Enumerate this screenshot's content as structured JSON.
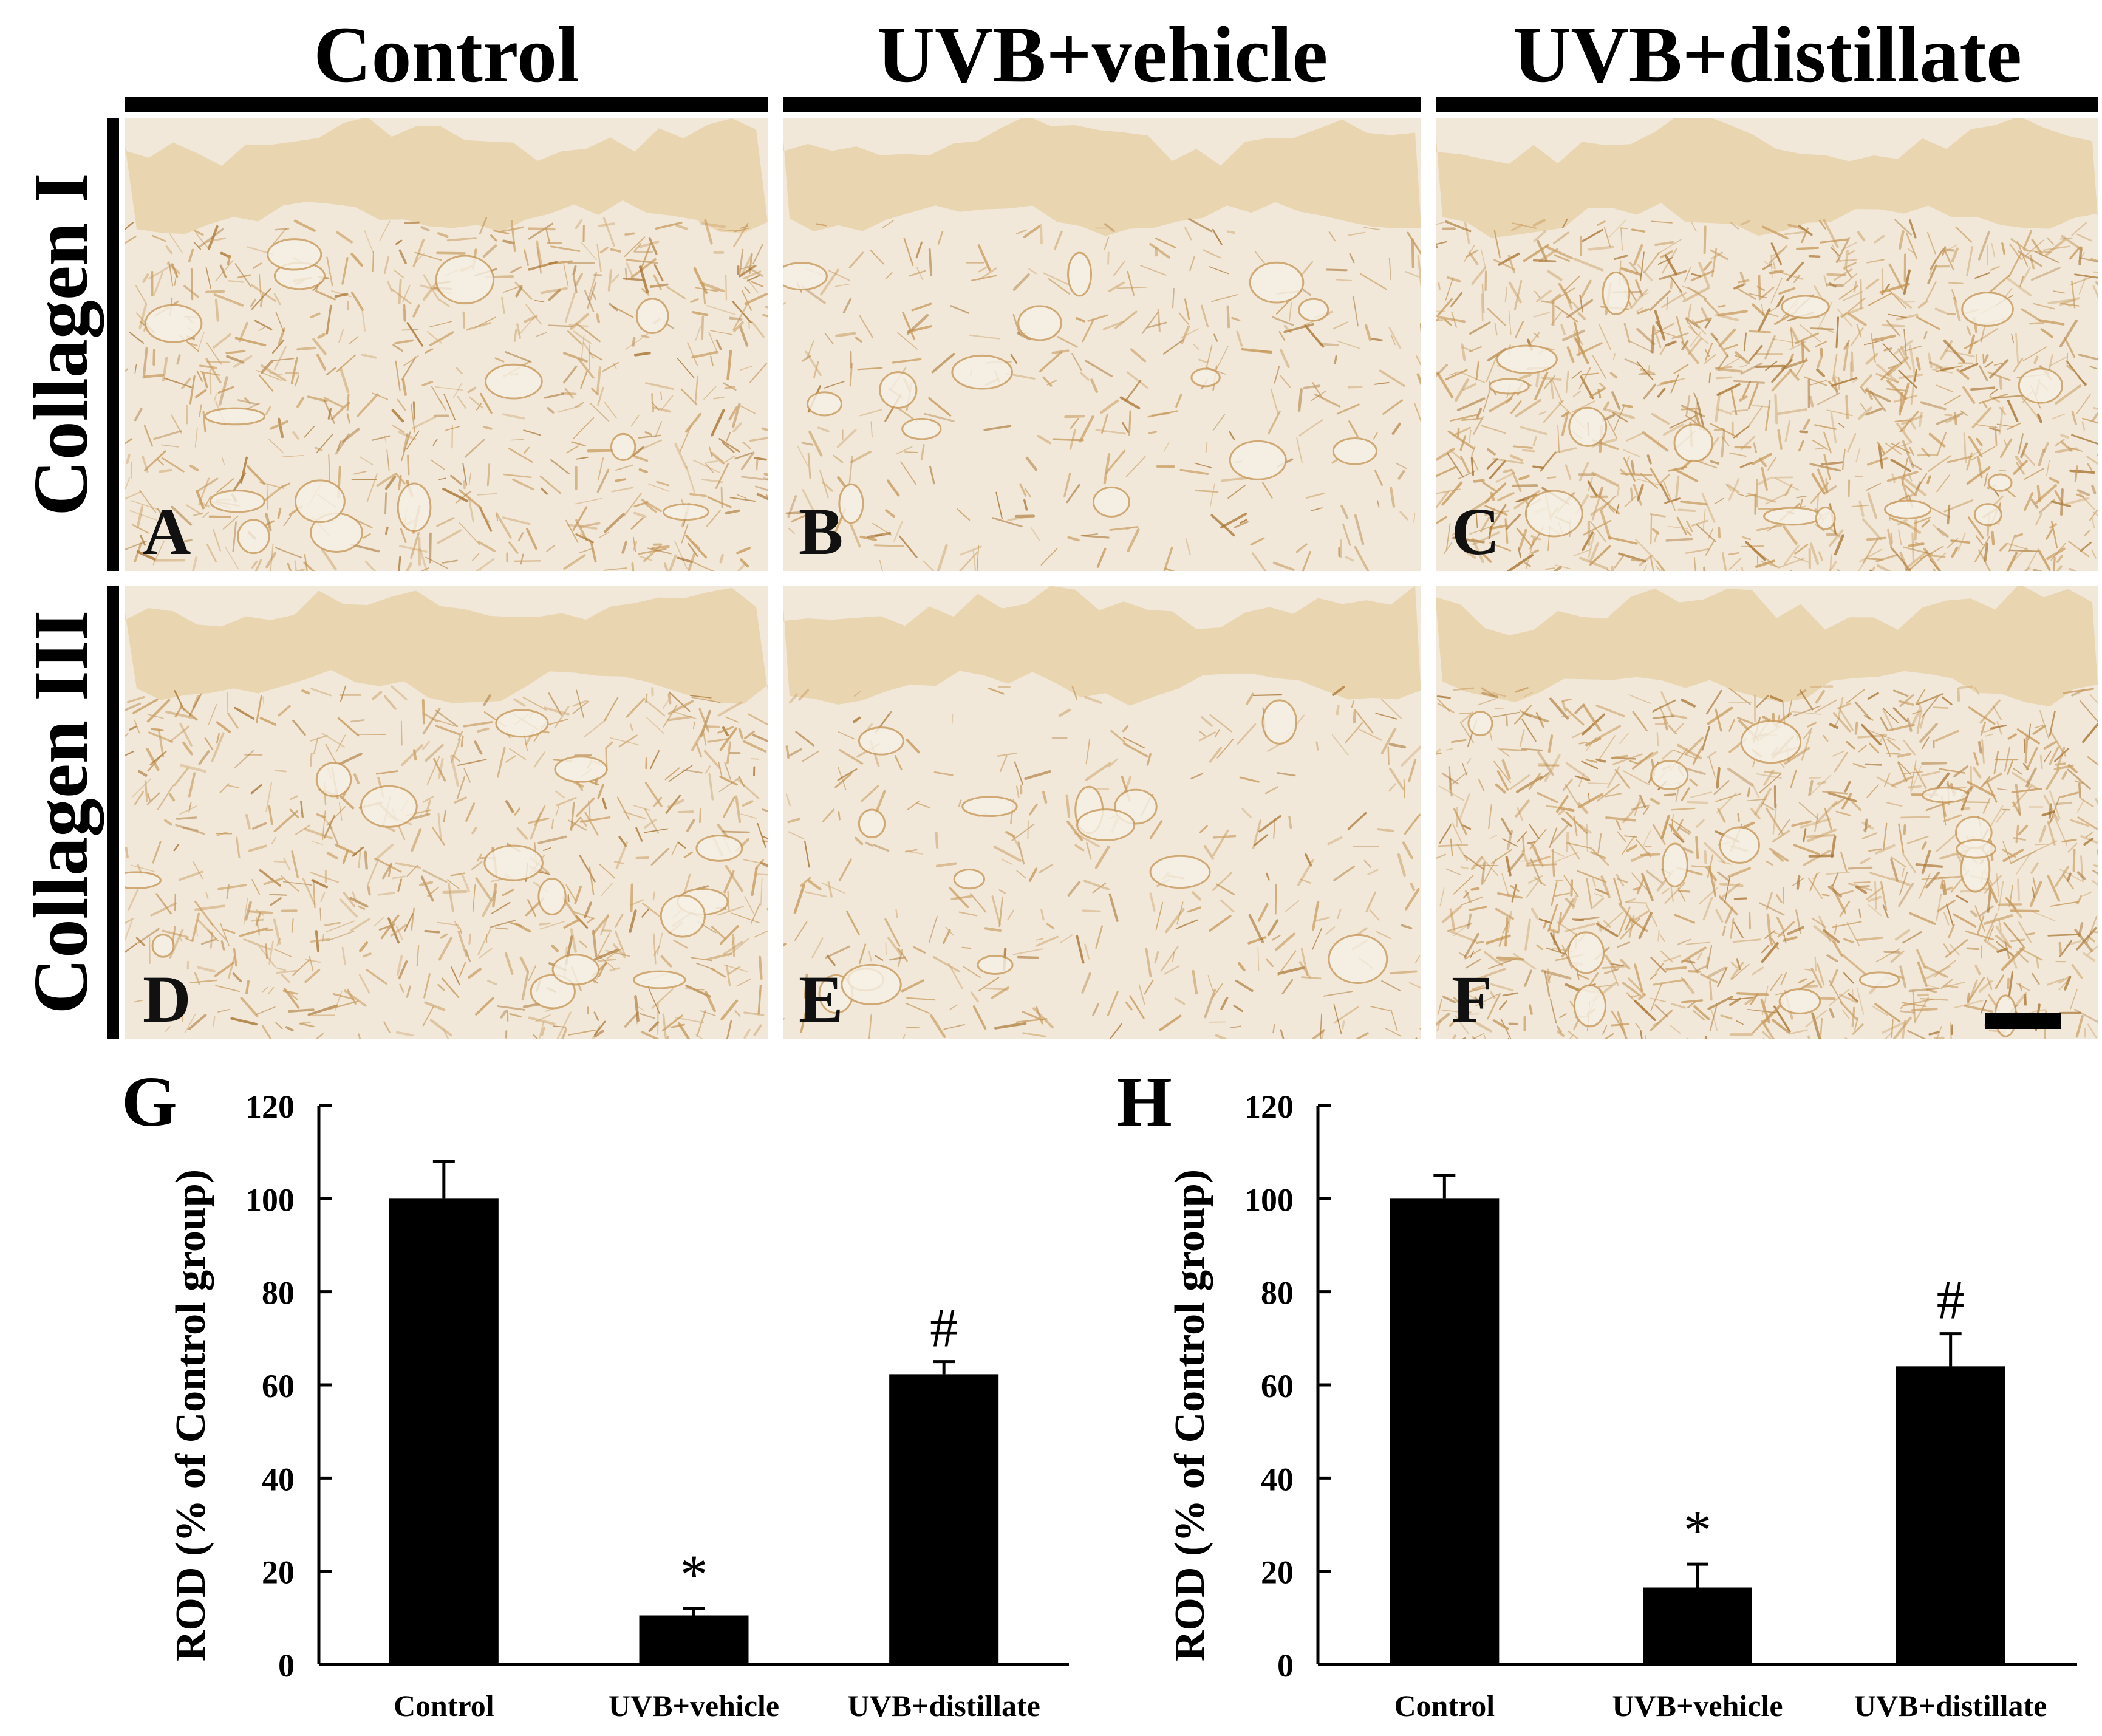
{
  "figure": {
    "column_titles": [
      "Control",
      "UVB+vehicle",
      "UVB+distillate"
    ],
    "row_titles": [
      "Collagen I",
      "Collagen III"
    ],
    "panels": [
      {
        "letter": "A",
        "stain": "medium"
      },
      {
        "letter": "B",
        "stain": "faint"
      },
      {
        "letter": "C",
        "stain": "dense"
      },
      {
        "letter": "D",
        "stain": "medium"
      },
      {
        "letter": "E",
        "stain": "faint"
      },
      {
        "letter": "F",
        "stain": "dense"
      }
    ],
    "colors": {
      "tissue_background": "#f1e8d9",
      "stain": "#c89a5c",
      "stain_dark": "#a8722f",
      "epidermis": "#e3c48f",
      "bar": "#000000"
    }
  },
  "chart_data": [
    {
      "type": "bar",
      "panel_letter": "G",
      "categories": [
        "Control",
        "UVB+vehicle",
        "UVB+distillate"
      ],
      "values": [
        100,
        10.5,
        62.3
      ],
      "errors": [
        8,
        1.5,
        2.7
      ],
      "annotations": [
        "",
        "*",
        "#"
      ],
      "ylabel": "ROD (% of Control group)",
      "ylim": [
        0,
        120
      ],
      "yticks": [
        0,
        20,
        40,
        60,
        80,
        100,
        120
      ],
      "grid": false,
      "bar_color": "#000000"
    },
    {
      "type": "bar",
      "panel_letter": "H",
      "categories": [
        "Control",
        "UVB+vehicle",
        "UVB+distillate"
      ],
      "values": [
        100,
        16.5,
        64
      ],
      "errors": [
        5,
        5,
        7
      ],
      "annotations": [
        "",
        "*",
        "#"
      ],
      "ylabel": "ROD (% of Control group)",
      "ylim": [
        0,
        120
      ],
      "yticks": [
        0,
        20,
        40,
        60,
        80,
        100,
        120
      ],
      "grid": false,
      "bar_color": "#000000"
    }
  ]
}
